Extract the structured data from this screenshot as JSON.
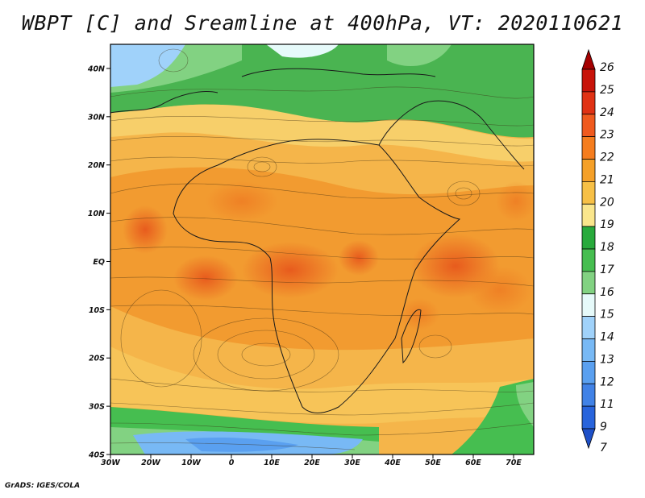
{
  "title": "WBPT [C] and Sreamline at 400hPa, VT: 2020110621",
  "footer": "GrADS: IGES/COLA",
  "map": {
    "lon_range": [
      -30,
      75
    ],
    "lat_range": [
      -40,
      45
    ],
    "lat_ticks": [
      {
        "value": 40,
        "label": "40N"
      },
      {
        "value": 30,
        "label": "30N"
      },
      {
        "value": 20,
        "label": "20N"
      },
      {
        "value": 10,
        "label": "10N"
      },
      {
        "value": 0,
        "label": "EQ"
      },
      {
        "value": -10,
        "label": "10S"
      },
      {
        "value": -20,
        "label": "20S"
      },
      {
        "value": -30,
        "label": "30S"
      },
      {
        "value": -40,
        "label": "40S"
      }
    ],
    "lon_ticks": [
      {
        "value": -30,
        "label": "30W"
      },
      {
        "value": -20,
        "label": "20W"
      },
      {
        "value": -10,
        "label": "10W"
      },
      {
        "value": 0,
        "label": "0"
      },
      {
        "value": 10,
        "label": "10E"
      },
      {
        "value": 20,
        "label": "20E"
      },
      {
        "value": 30,
        "label": "30E"
      },
      {
        "value": 40,
        "label": "40E"
      },
      {
        "value": 50,
        "label": "50E"
      },
      {
        "value": 60,
        "label": "60E"
      },
      {
        "value": 70,
        "label": "70E"
      }
    ]
  },
  "colorbar": {
    "labels": [
      "26",
      "25",
      "24",
      "23",
      "22",
      "21",
      "20",
      "19",
      "18",
      "17",
      "16",
      "15",
      "14",
      "13",
      "12",
      "11",
      "9",
      "7"
    ],
    "colors": [
      "#a50000",
      "#c8140a",
      "#e03214",
      "#f05a1e",
      "#f57d1e",
      "#f5a028",
      "#f7c046",
      "#fae68c",
      "#28aa3c",
      "#46be50",
      "#82d282",
      "#e6fafa",
      "#a0d2fa",
      "#78b9f5",
      "#5aa0f0",
      "#4182e6",
      "#2864dc",
      "#1e50c8"
    ]
  }
}
